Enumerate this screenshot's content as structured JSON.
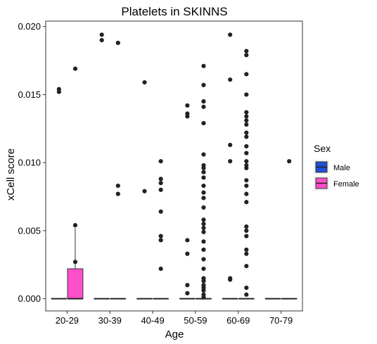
{
  "chart_data": {
    "type": "box",
    "title": "Platelets in SKINNS",
    "xlabel": "Age",
    "ylabel": "xCell score",
    "categories": [
      "20-29",
      "30-39",
      "40-49",
      "50-59",
      "60-69",
      "70-79"
    ],
    "yticks": [
      "0.000",
      "0.005",
      "0.010",
      "0.015",
      "0.020"
    ],
    "ylim": [
      -0.0009,
      0.0204
    ],
    "grid": false,
    "legend": {
      "title": "Sex",
      "position": "right",
      "entries": [
        {
          "name": "Male",
          "color": "#1f4fd6"
        },
        {
          "name": "Female",
          "color": "#ff4fc8"
        }
      ]
    },
    "series": [
      {
        "name": "Male",
        "color": "#1f4fd6",
        "boxes": [
          {
            "category": "20-29",
            "whisker_low": 0,
            "q1": 0,
            "median": 0,
            "q3": 0,
            "whisker_high": 0,
            "outliers": [
              0.0154,
              0.0152
            ]
          },
          {
            "category": "30-39",
            "whisker_low": 0,
            "q1": 0,
            "median": 0,
            "q3": 0,
            "whisker_high": 0,
            "outliers": [
              0.0194,
              0.019
            ]
          },
          {
            "category": "40-49",
            "whisker_low": 0,
            "q1": 0,
            "median": 0,
            "q3": 0,
            "whisker_high": 0,
            "outliers": [
              0.0159,
              0.0079
            ]
          },
          {
            "category": "50-59",
            "whisker_low": 0,
            "q1": 0,
            "median": 0,
            "q3": 0,
            "whisker_high": 0,
            "outliers": [
              0.0142,
              0.0136,
              0.0134,
              0.0043,
              0.0033,
              0.001,
              0.0004
            ]
          },
          {
            "category": "60-69",
            "whisker_low": 0,
            "q1": 0,
            "median": 0,
            "q3": 0,
            "whisker_high": 0,
            "outliers": [
              0.0194,
              0.0161,
              0.0113,
              0.0101,
              0.0015,
              0.0014
            ]
          },
          {
            "category": "70-79",
            "whisker_low": 0,
            "q1": 0,
            "median": 0,
            "q3": 0,
            "whisker_high": 0,
            "outliers": []
          }
        ]
      },
      {
        "name": "Female",
        "color": "#ff4fc8",
        "boxes": [
          {
            "category": "20-29",
            "whisker_low": 0,
            "q1": 0,
            "median": 0,
            "q3": 0.0022,
            "whisker_high": 0.0052,
            "outliers": [
              0.0169,
              0.0054,
              0.0027
            ]
          },
          {
            "category": "30-39",
            "whisker_low": 0,
            "q1": 0,
            "median": 0,
            "q3": 0,
            "whisker_high": 0,
            "outliers": [
              0.0188,
              0.0083,
              0.0077
            ]
          },
          {
            "category": "40-49",
            "whisker_low": 0,
            "q1": 0,
            "median": 0,
            "q3": 0,
            "whisker_high": 0,
            "outliers": [
              0.0101,
              0.0088,
              0.0085,
              0.008,
              0.0064,
              0.0046,
              0.0043,
              0.0022
            ]
          },
          {
            "category": "50-59",
            "whisker_low": 0,
            "q1": 0,
            "median": 0,
            "q3": 0,
            "whisker_high": 0,
            "outliers": [
              0.0171,
              0.0157,
              0.0145,
              0.0141,
              0.0129,
              0.0106,
              0.0098,
              0.0096,
              0.0093,
              0.0089,
              0.0083,
              0.0078,
              0.0074,
              0.0067,
              0.0058,
              0.0055,
              0.0052,
              0.0049,
              0.0042,
              0.0036,
              0.0029,
              0.0022,
              0.0015,
              0.0013,
              0.001,
              0.0008,
              0.0006,
              0.0003,
              0.0001
            ]
          },
          {
            "category": "60-69",
            "whisker_low": 0,
            "q1": 0,
            "median": 0,
            "q3": 0,
            "whisker_high": 0,
            "outliers": [
              0.0182,
              0.0179,
              0.0165,
              0.015,
              0.0137,
              0.0134,
              0.0131,
              0.0128,
              0.0122,
              0.0119,
              0.0112,
              0.0107,
              0.0101,
              0.0098,
              0.0096,
              0.0087,
              0.0083,
              0.0077,
              0.0071,
              0.0053,
              0.005,
              0.0046,
              0.0036,
              0.0033,
              0.0024,
              0.0008,
              0.0003
            ]
          },
          {
            "category": "70-79",
            "whisker_low": 0,
            "q1": 0,
            "median": 0,
            "q3": 0,
            "whisker_high": 0,
            "outliers": [
              0.0101
            ]
          }
        ]
      }
    ]
  }
}
